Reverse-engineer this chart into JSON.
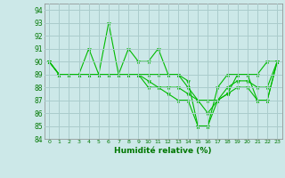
{
  "title": "",
  "xlabel": "Humidité relative (%)",
  "ylabel": "",
  "bg_color": "#cce8e8",
  "grid_color": "#aacccc",
  "line_color": "#00bb00",
  "xlim": [
    -0.5,
    23.5
  ],
  "ylim": [
    84,
    94.5
  ],
  "yticks": [
    84,
    85,
    86,
    87,
    88,
    89,
    90,
    91,
    92,
    93,
    94
  ],
  "xticks": [
    0,
    1,
    2,
    3,
    4,
    5,
    6,
    7,
    8,
    9,
    10,
    11,
    12,
    13,
    14,
    15,
    16,
    17,
    18,
    19,
    20,
    21,
    22,
    23
  ],
  "series": [
    [
      90,
      89,
      89,
      89,
      91,
      89,
      93,
      89,
      91,
      90,
      90,
      91,
      89,
      89,
      88.5,
      85,
      85,
      88,
      89,
      89,
      89,
      89,
      90,
      90
    ],
    [
      90,
      89,
      89,
      89,
      89,
      89,
      89,
      89,
      89,
      89,
      89,
      89,
      89,
      89,
      88,
      87,
      87,
      87,
      87.5,
      89,
      89,
      87,
      87,
      90
    ],
    [
      90,
      89,
      89,
      89,
      89,
      89,
      89,
      89,
      89,
      89,
      88.5,
      88,
      88,
      88,
      87.5,
      87,
      86,
      87,
      88,
      88.5,
      88.5,
      88,
      88,
      90
    ],
    [
      90,
      89,
      89,
      89,
      89,
      89,
      89,
      89,
      89,
      89,
      88,
      88,
      87.5,
      87,
      87,
      85,
      85,
      87,
      87.5,
      88,
      88,
      87,
      87,
      90
    ]
  ]
}
